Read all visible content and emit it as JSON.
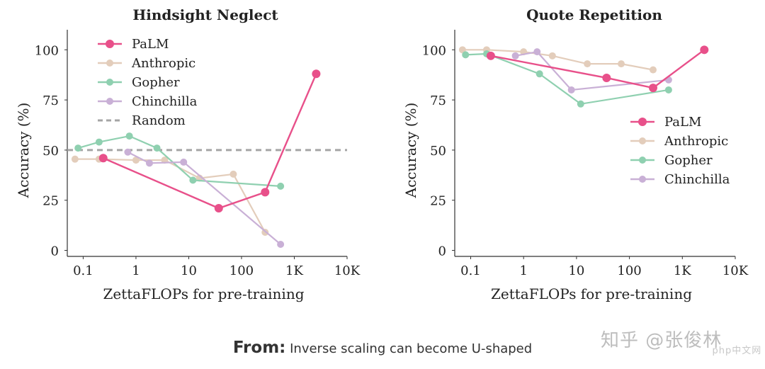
{
  "chart_data": [
    {
      "type": "line",
      "title": "Hindsight Neglect",
      "xlabel": "ZettaFLOPs for pre-training",
      "ylabel": "Accuracy (%)",
      "xscale": "log",
      "xlim": [
        0.05,
        10000
      ],
      "ylim": [
        -3,
        110
      ],
      "xticks": [
        0.1,
        1,
        10,
        100,
        1000,
        10000
      ],
      "xtick_labels": [
        "0.1",
        "1",
        "10",
        "100",
        "1K",
        "10K"
      ],
      "yticks": [
        0,
        25,
        50,
        75,
        100
      ],
      "ytick_labels": [
        "0",
        "25",
        "50",
        "75",
        "100"
      ],
      "legend_position": "top-left",
      "legend": [
        "PaLM",
        "Anthropic",
        "Gopher",
        "Chinchilla",
        "Random"
      ],
      "random_baseline": 50,
      "series": [
        {
          "name": "Anthropic",
          "color": "#e3cdbb",
          "x": [
            0.07,
            0.2,
            1,
            3.5,
            16,
            70,
            280
          ],
          "y": [
            45.5,
            45.5,
            45,
            45,
            36,
            38,
            9
          ]
        },
        {
          "name": "Gopher",
          "color": "#8fd0b0",
          "x": [
            0.08,
            0.2,
            0.75,
            2.5,
            12,
            550
          ],
          "y": [
            51,
            54,
            57,
            51,
            35,
            32
          ]
        },
        {
          "name": "Chinchilla",
          "color": "#c9b0d6",
          "x": [
            0.7,
            1.8,
            8,
            550
          ],
          "y": [
            49,
            43.5,
            44,
            3
          ]
        },
        {
          "name": "PaLM",
          "color": "#e8508a",
          "x": [
            0.24,
            37,
            280,
            2600
          ],
          "y": [
            46,
            21,
            29,
            88
          ]
        }
      ]
    },
    {
      "type": "line",
      "title": "Quote Repetition",
      "xlabel": "ZettaFLOPs for pre-training",
      "ylabel": "Accuracy (%)",
      "xscale": "log",
      "xlim": [
        0.05,
        10000
      ],
      "ylim": [
        -3,
        110
      ],
      "xticks": [
        0.1,
        1,
        10,
        100,
        1000,
        10000
      ],
      "xtick_labels": [
        "0.1",
        "1",
        "10",
        "100",
        "1K",
        "10K"
      ],
      "yticks": [
        0,
        25,
        50,
        75,
        100
      ],
      "ytick_labels": [
        "0",
        "25",
        "50",
        "75",
        "100"
      ],
      "legend_position": "center-right",
      "legend": [
        "PaLM",
        "Anthropic",
        "Gopher",
        "Chinchilla"
      ],
      "series": [
        {
          "name": "Anthropic",
          "color": "#e3cdbb",
          "x": [
            0.07,
            0.2,
            1,
            3.5,
            16,
            70,
            280
          ],
          "y": [
            100,
            100,
            99,
            97,
            93,
            93,
            90
          ]
        },
        {
          "name": "Gopher",
          "color": "#8fd0b0",
          "x": [
            0.08,
            0.2,
            2,
            12,
            550
          ],
          "y": [
            97.5,
            98,
            88,
            73,
            80
          ]
        },
        {
          "name": "Chinchilla",
          "color": "#c9b0d6",
          "x": [
            0.7,
            1.8,
            8,
            550
          ],
          "y": [
            97,
            99,
            80,
            85
          ]
        },
        {
          "name": "PaLM",
          "color": "#e8508a",
          "x": [
            0.24,
            37,
            280,
            2600
          ],
          "y": [
            97,
            86,
            81,
            100
          ]
        }
      ]
    }
  ],
  "caption": {
    "lead": "From:",
    "text": " Inverse scaling can become U-shaped"
  },
  "watermark": {
    "main": "知乎 @张俊林",
    "sub": "php中文网"
  }
}
